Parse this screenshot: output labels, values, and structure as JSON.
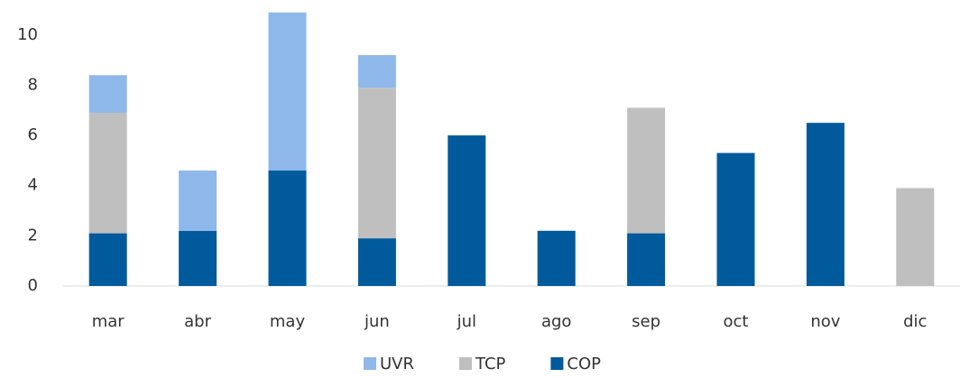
{
  "chart_data": {
    "type": "bar",
    "stacked": true,
    "categories": [
      "mar",
      "abr",
      "may",
      "jun",
      "jul",
      "ago",
      "sep",
      "oct",
      "nov",
      "dic"
    ],
    "series": [
      {
        "name": "UVR",
        "color": "#8fb8ea",
        "values": [
          1.5,
          2.4,
          6.3,
          1.3,
          0,
          0,
          0,
          0,
          0,
          0
        ]
      },
      {
        "name": "TCP",
        "color": "#bfbfbf",
        "values": [
          4.8,
          0,
          0,
          6.0,
          0,
          0,
          5.0,
          0,
          0,
          3.9
        ]
      },
      {
        "name": "COP",
        "color": "#005a9c",
        "values": [
          2.1,
          2.2,
          4.6,
          1.9,
          6.0,
          2.2,
          2.1,
          5.3,
          6.5,
          0
        ]
      }
    ],
    "ylim": [
      0,
      11
    ],
    "yticks": [
      0,
      2,
      4,
      6,
      8,
      10
    ],
    "grid": false,
    "legend": "bottom"
  }
}
